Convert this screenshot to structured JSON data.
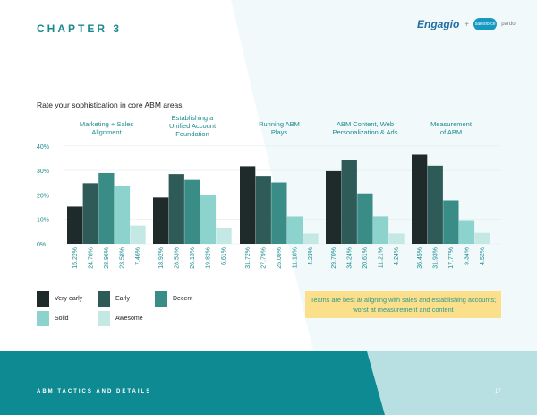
{
  "header": {
    "chapter": "CHAPTER 3",
    "logo_engagio": "Engagio",
    "logo_plus": "+",
    "logo_salesforce": "salesforce",
    "logo_pardot": "pardot"
  },
  "question": "Rate your sophistication in core ABM areas.",
  "colors": {
    "very_early": "#1f2b2a",
    "early": "#2e5a57",
    "decent": "#3a8c86",
    "solid": "#8dd3cd",
    "awesome": "#c4e9e5",
    "accent": "#1b8a8f",
    "footer_band": "#0e8a93",
    "callout": "#fbdf8b"
  },
  "chart_data": {
    "type": "bar",
    "categories": [
      "Marketing + Sales Alignment",
      "Establishing a Unified Account Foundation",
      "Running ABM Plays",
      "ABM Content, Web Personalization & Ads",
      "Measurement of ABM"
    ],
    "category_lines": [
      [
        "Marketing + Sales",
        "Alignment"
      ],
      [
        "Establishing a",
        "Unified Account",
        "Foundation"
      ],
      [
        "Running ABM",
        "Plays"
      ],
      [
        "ABM Content, Web",
        "Personalization & Ads"
      ],
      [
        "Measurement",
        "of ABM"
      ]
    ],
    "series": [
      {
        "name": "Very early",
        "values": [
          15.22,
          18.92,
          31.72,
          29.7,
          36.45
        ]
      },
      {
        "name": "Early",
        "values": [
          24.78,
          28.53,
          27.79,
          34.24,
          31.93
        ]
      },
      {
        "name": "Decent",
        "values": [
          28.96,
          26.13,
          25.08,
          20.61,
          17.77
        ]
      },
      {
        "name": "Solid",
        "values": [
          23.58,
          19.82,
          11.18,
          11.21,
          9.34
        ]
      },
      {
        "name": "Awesome",
        "values": [
          7.46,
          6.61,
          4.23,
          4.24,
          4.52
        ]
      }
    ],
    "yticks": [
      "0%",
      "10%",
      "20%",
      "30%",
      "40%"
    ],
    "ylim": [
      0,
      40
    ],
    "grid": true,
    "legend_placement": "bottom-left",
    "data_labels": "rotated below bars"
  },
  "legend": [
    {
      "label": "Very early"
    },
    {
      "label": "Early"
    },
    {
      "label": "Decent"
    },
    {
      "label": "Solid"
    },
    {
      "label": "Awesome"
    }
  ],
  "callout": "Teams are best at aligning with sales and establishing accounts; worst at measurement and content",
  "footer": {
    "section": "ABM TACTICS AND DETAILS",
    "page": "17"
  }
}
